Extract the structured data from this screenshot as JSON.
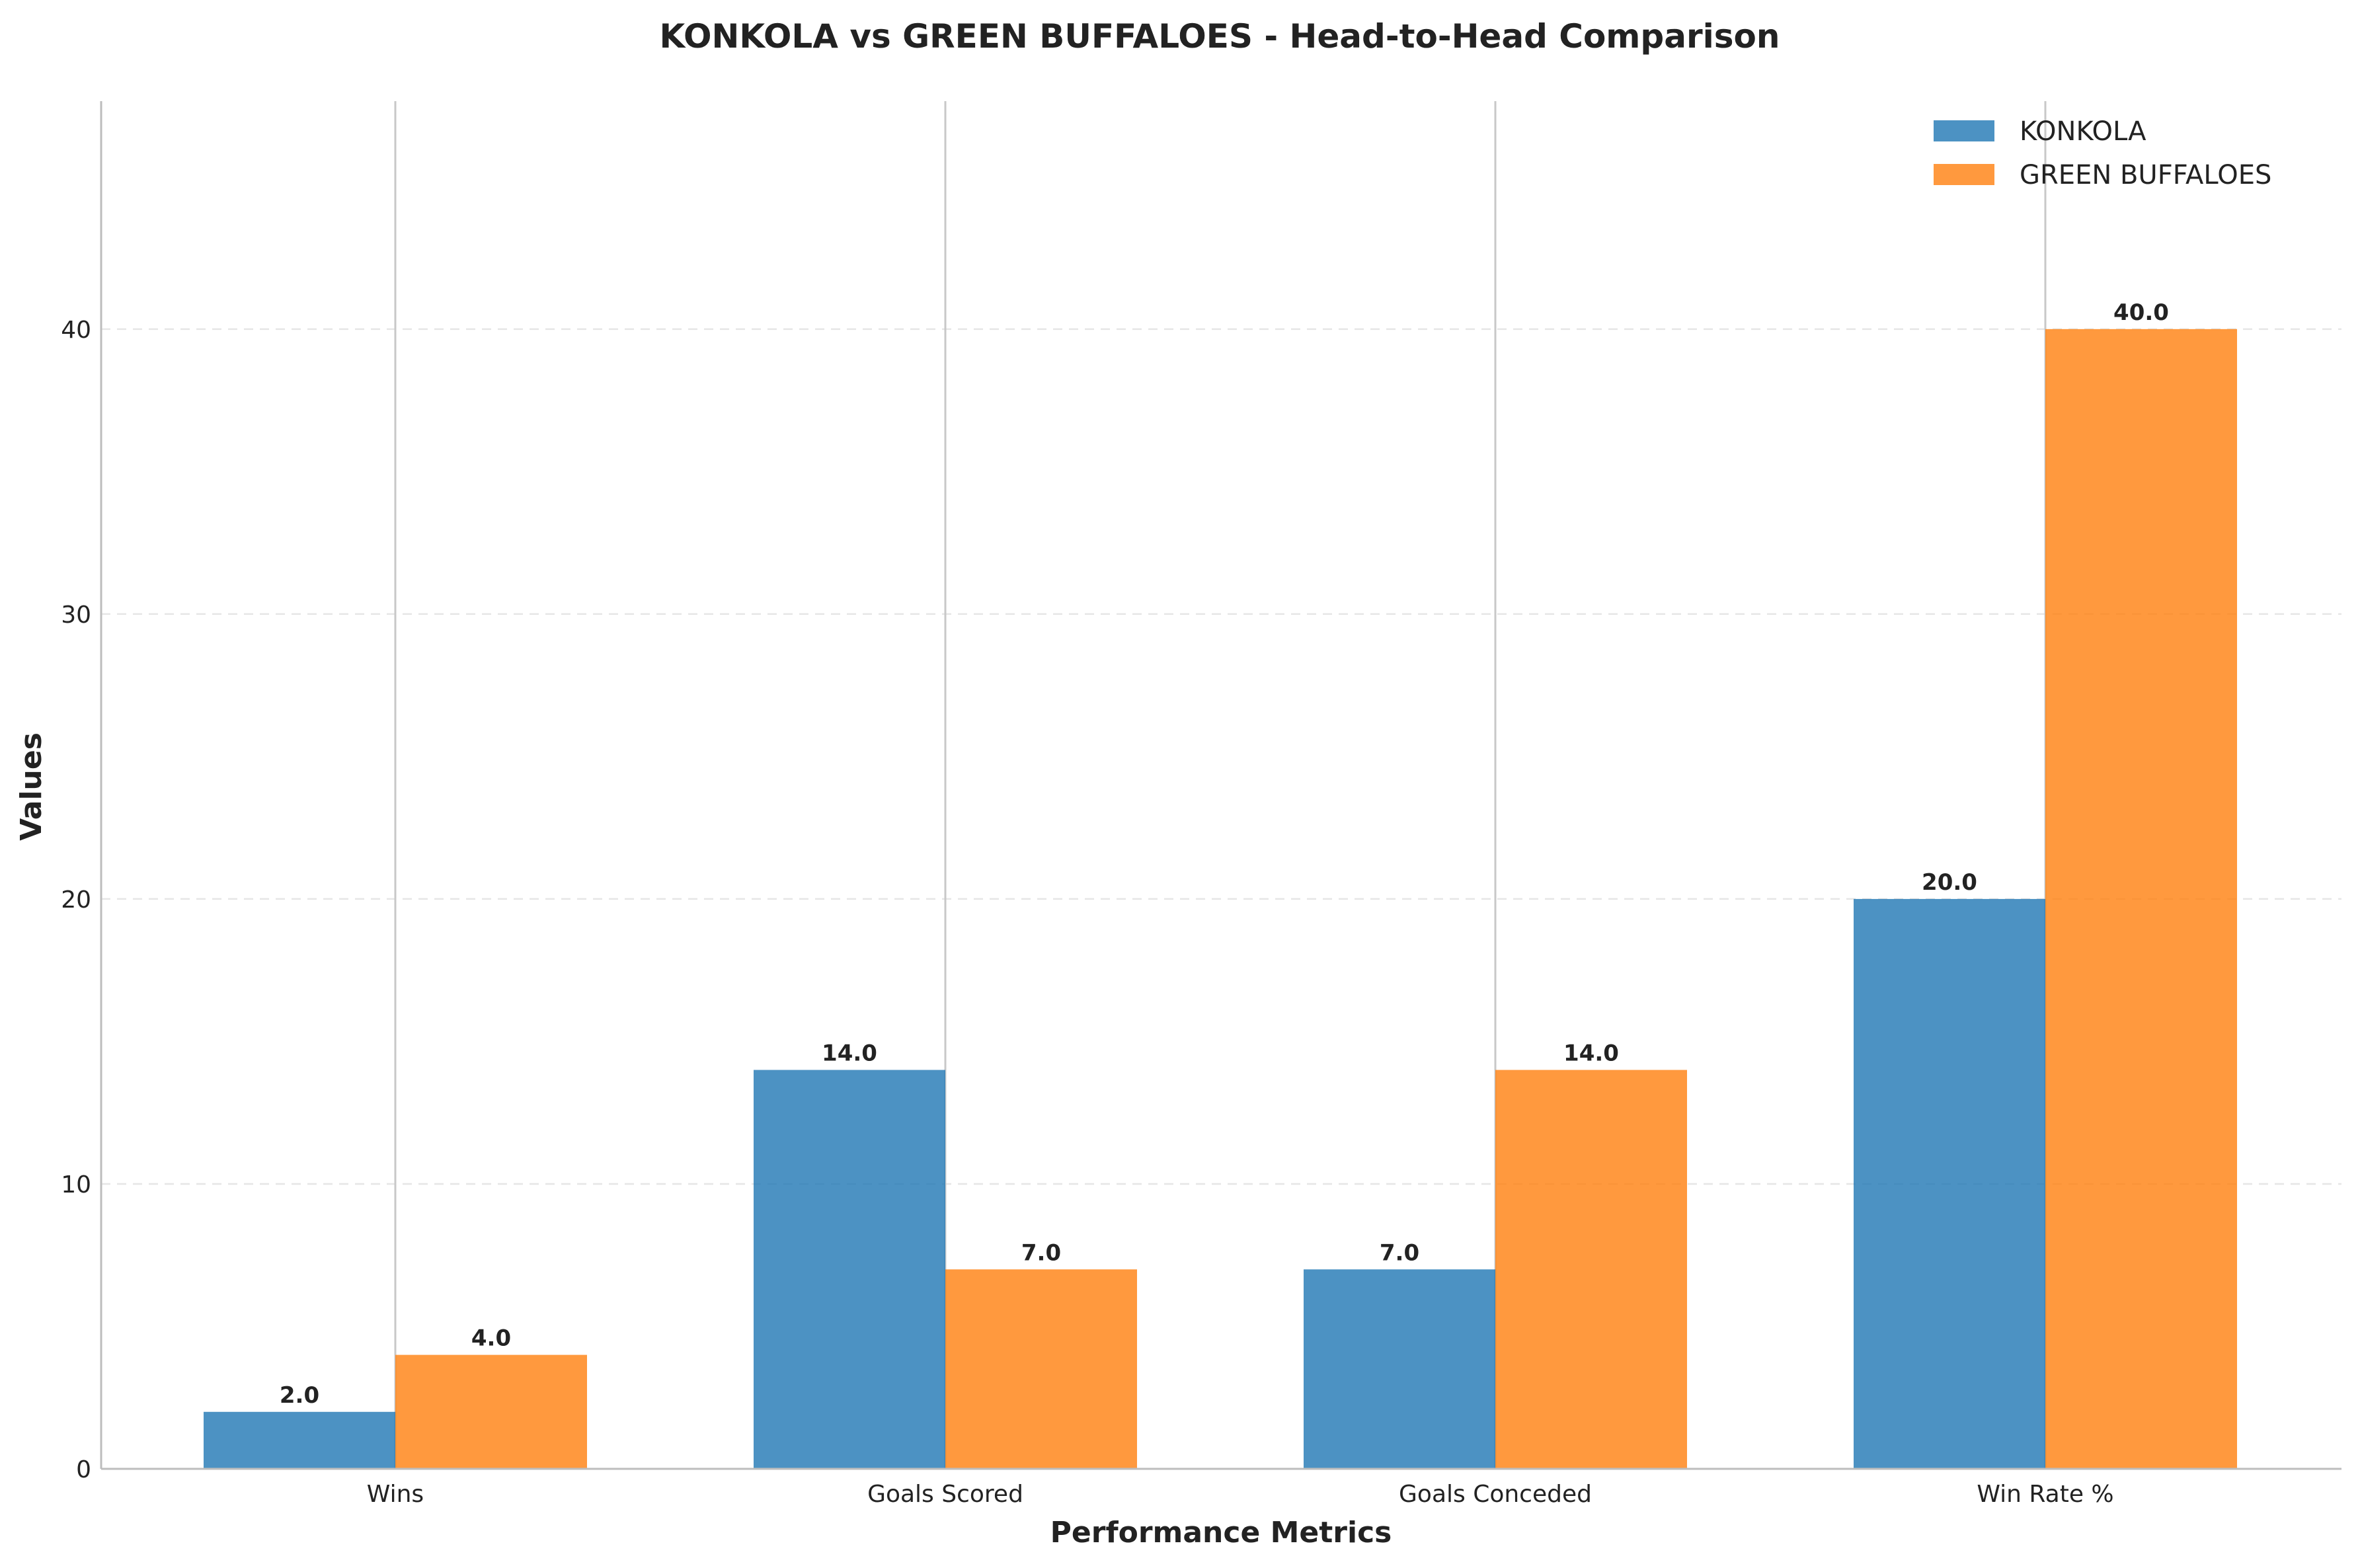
{
  "chart_data": {
    "type": "bar",
    "title": "KONKOLA vs GREEN BUFFALOES - Head-to-Head Comparison",
    "xlabel": "Performance Metrics",
    "ylabel": "Values",
    "categories": [
      "Wins",
      "Goals Scored",
      "Goals Conceded",
      "Win Rate %"
    ],
    "series": [
      {
        "name": "KONKOLA",
        "values": [
          2.0,
          14.0,
          7.0,
          20.0
        ],
        "color": "#1f77b4",
        "labels": [
          "2.0",
          "14.0",
          "7.0",
          "20.0"
        ]
      },
      {
        "name": "GREEN BUFFALOES",
        "values": [
          4.0,
          7.0,
          14.0,
          40.0
        ],
        "color": "#ff7f0e",
        "labels": [
          "4.0",
          "7.0",
          "14.0",
          "40.0"
        ]
      }
    ],
    "ylim": [
      0,
      48
    ],
    "yticks": [
      0,
      10,
      20,
      30,
      40
    ],
    "ytick_labels": [
      "0",
      "10",
      "20",
      "30",
      "40"
    ],
    "grid": true,
    "legend": "top-right"
  }
}
